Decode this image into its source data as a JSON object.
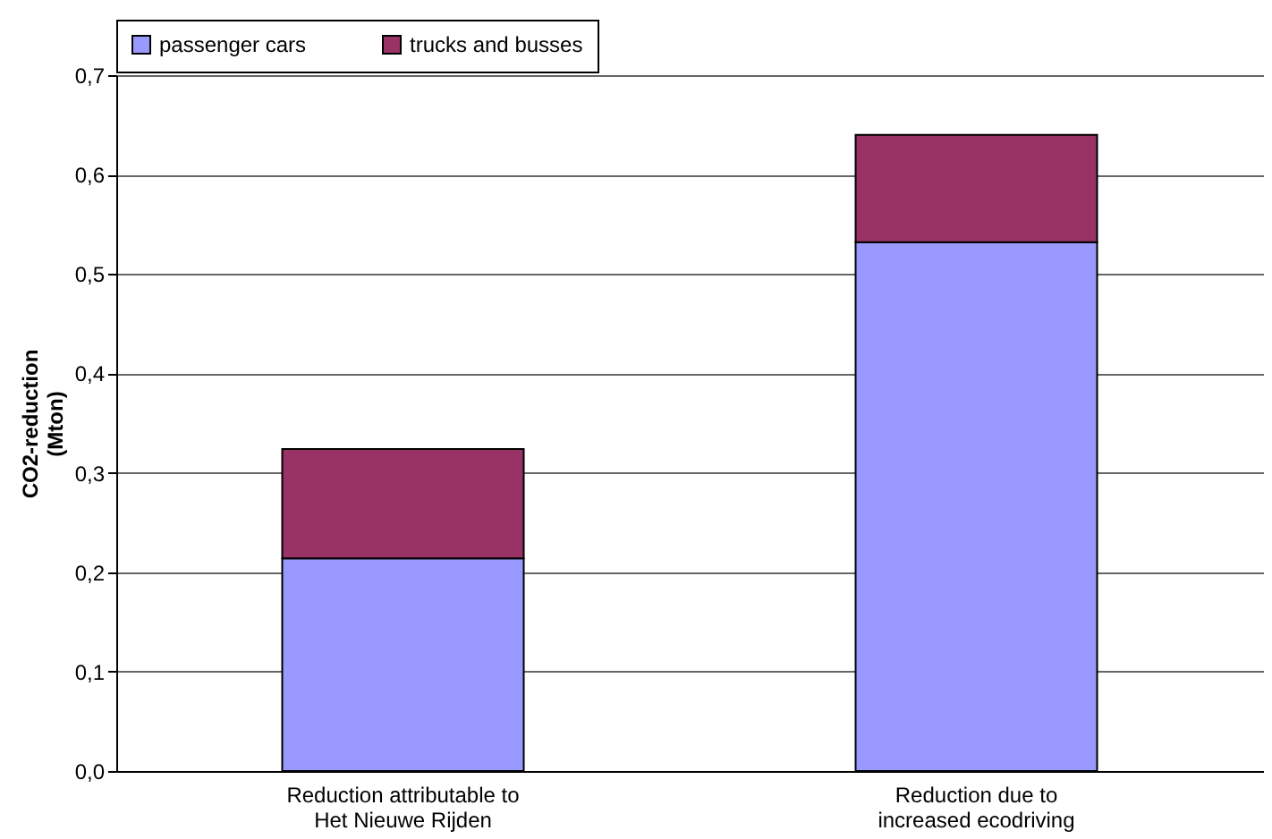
{
  "chart_data": {
    "type": "bar",
    "stacked": true,
    "ylabel": "CO2-reduction\n(Mton)",
    "categories": [
      "Reduction attributable to\nHet Nieuwe Rijden",
      "Reduction due to\nincreased ecodriving"
    ],
    "series": [
      {
        "name": "passenger cars",
        "color": "#9999ff",
        "values": [
          0.214,
          0.532
        ]
      },
      {
        "name": "trucks and busses",
        "color": "#993366",
        "values": [
          0.11,
          0.108
        ]
      }
    ],
    "ylim": [
      0,
      0.7
    ],
    "yticks": [
      {
        "value": 0,
        "label": "0,0"
      },
      {
        "value": 0.1,
        "label": "0,1"
      },
      {
        "value": 0.2,
        "label": "0,2"
      },
      {
        "value": 0.3,
        "label": "0,3"
      },
      {
        "value": 0.4,
        "label": "0,4"
      },
      {
        "value": 0.5,
        "label": "0,5"
      },
      {
        "value": 0.6,
        "label": "0,6"
      },
      {
        "value": 0.7,
        "label": "0,7"
      }
    ],
    "grid": "y",
    "legend": "top"
  }
}
